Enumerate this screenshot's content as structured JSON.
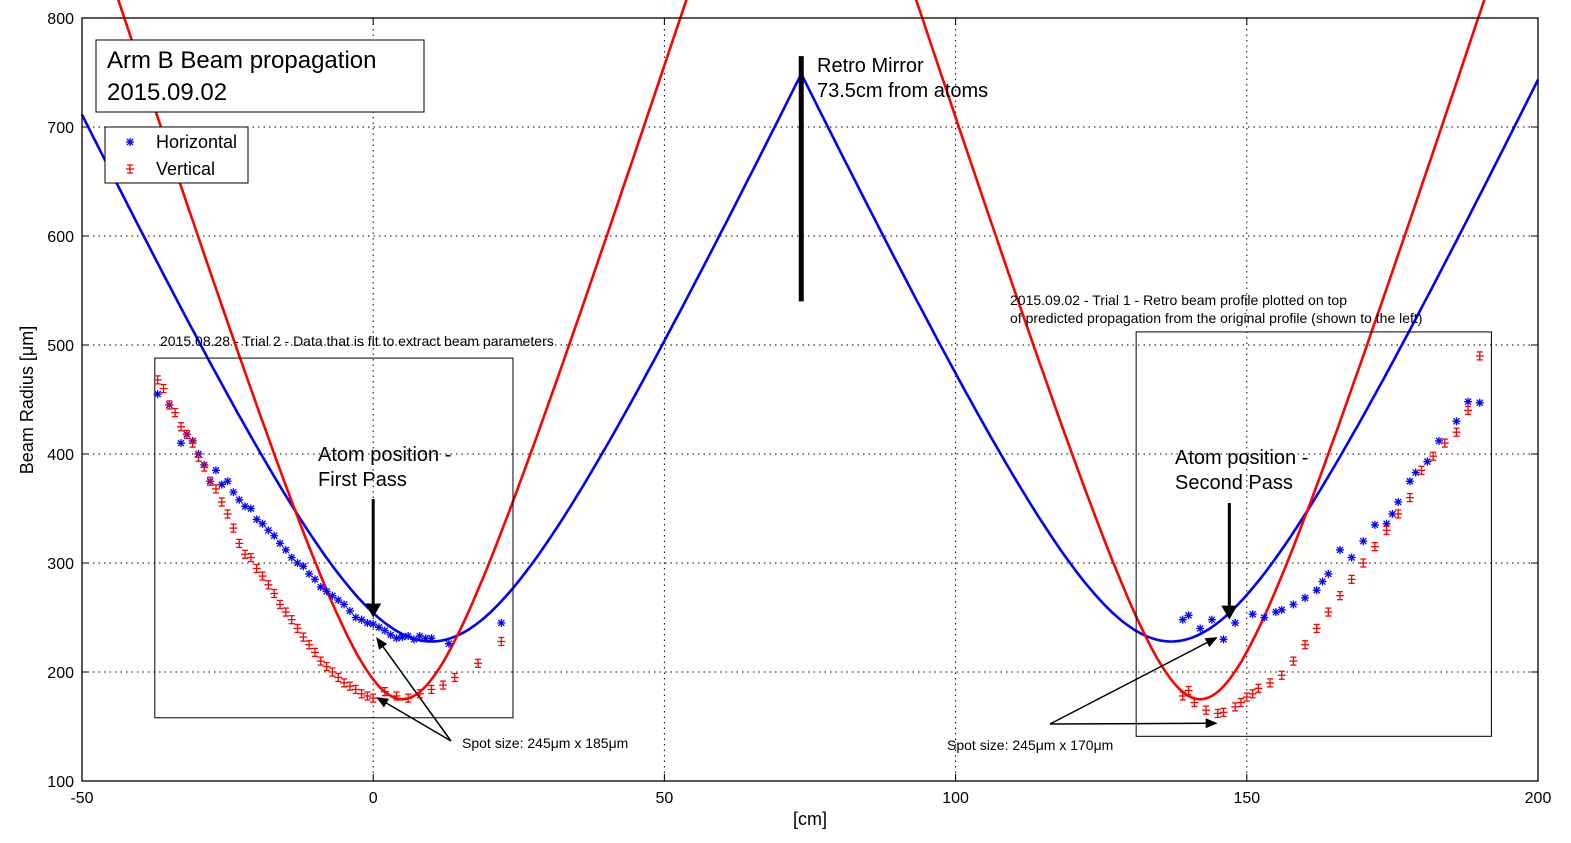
{
  "chart_data": {
    "type": "scatter",
    "title_lines": [
      "Arm B Beam propagation",
      "2015.09.02"
    ],
    "xlabel": "[cm]",
    "ylabel": "Beam Radius [μm]",
    "xlim": [
      -50,
      200
    ],
    "ylim": [
      100,
      800
    ],
    "xticks": [
      -50,
      0,
      50,
      100,
      150,
      200
    ],
    "yticks": [
      100,
      200,
      300,
      400,
      500,
      600,
      700,
      800
    ],
    "grid": true,
    "legend_position": "top-left",
    "legend": [
      {
        "label": "Horizontal",
        "marker": "*",
        "color": "#0000ff"
      },
      {
        "label": "Vertical",
        "marker": "+",
        "color": "#ff0000"
      }
    ],
    "model_curves": [
      {
        "name": "Horizontal",
        "color": "#0000ff",
        "waist_um": 228,
        "waist_cm": 10,
        "rayleigh_cm": 20.3,
        "mirror_cm": 73.5,
        "x_range": [
          -50,
          200
        ]
      },
      {
        "name": "Vertical",
        "color": "#ff0000",
        "waist_um": 175,
        "waist_cm": 5,
        "rayleigh_cm": 10.7,
        "mirror_cm": 73.5,
        "x_range": [
          -50,
          200
        ]
      }
    ],
    "series": [
      {
        "name": "Horizontal",
        "color": "#0000ff",
        "marker": "*",
        "x": [
          -37,
          -35,
          -33,
          -32,
          -31,
          -30,
          -29,
          -28,
          -27,
          -26,
          -25,
          -24,
          -23,
          -22,
          -21,
          -20,
          -19,
          -18,
          -17,
          -16,
          -15,
          -14,
          -13,
          -12,
          -11,
          -10,
          -9,
          -8,
          -7,
          -6,
          -5,
          -4,
          -3,
          -2,
          -1,
          0,
          1,
          2,
          3,
          4,
          5,
          6,
          7,
          8,
          9,
          10,
          13,
          22,
          139,
          140,
          142,
          144,
          146,
          148,
          151,
          153,
          155,
          156,
          158,
          160,
          162,
          163,
          164,
          166,
          168,
          170,
          172,
          174,
          175,
          176,
          178,
          179,
          181,
          183,
          186,
          188,
          190
        ],
        "y": [
          455,
          445,
          410,
          418,
          412,
          400,
          390,
          375,
          385,
          372,
          375,
          365,
          358,
          352,
          350,
          340,
          336,
          330,
          325,
          318,
          312,
          305,
          300,
          297,
          290,
          285,
          278,
          274,
          270,
          266,
          262,
          256,
          250,
          248,
          245,
          244,
          241,
          238,
          234,
          231,
          232,
          233,
          230,
          233,
          231,
          231,
          226,
          245,
          248,
          252,
          240,
          248,
          230,
          245,
          253,
          250,
          255,
          257,
          262,
          268,
          275,
          283,
          290,
          312,
          305,
          320,
          335,
          336,
          345,
          356,
          375,
          383,
          393,
          412,
          430,
          448,
          447
        ]
      },
      {
        "name": "Vertical",
        "color": "#ff0000",
        "marker": "+",
        "x": [
          -37,
          -36,
          -35,
          -34,
          -33,
          -32,
          -31,
          -30,
          -29,
          -28,
          -27,
          -26,
          -25,
          -24,
          -23,
          -22,
          -21,
          -20,
          -19,
          -18,
          -17,
          -16,
          -15,
          -14,
          -13,
          -12,
          -11,
          -10,
          -9,
          -8,
          -7,
          -6,
          -5,
          -4,
          -3,
          -2,
          -1,
          0,
          2,
          4,
          6,
          8,
          10,
          12,
          14,
          18,
          22,
          139,
          140,
          141,
          143,
          145,
          146,
          148,
          149,
          150,
          151,
          152,
          154,
          156,
          158,
          160,
          162,
          164,
          166,
          168,
          170,
          172,
          174,
          176,
          178,
          180,
          182,
          184,
          186,
          188,
          190
        ],
        "y": [
          468,
          460,
          445,
          438,
          425,
          418,
          410,
          397,
          388,
          375,
          368,
          356,
          345,
          332,
          318,
          308,
          305,
          295,
          288,
          280,
          272,
          262,
          255,
          248,
          240,
          232,
          225,
          218,
          210,
          205,
          200,
          195,
          190,
          187,
          184,
          180,
          178,
          176,
          182,
          178,
          176,
          180,
          184,
          188,
          195,
          208,
          228,
          178,
          183,
          172,
          165,
          162,
          163,
          168,
          172,
          177,
          180,
          185,
          190,
          197,
          210,
          225,
          240,
          255,
          270,
          285,
          300,
          315,
          330,
          345,
          360,
          385,
          398,
          410,
          420,
          440,
          490
        ]
      }
    ],
    "annotations": {
      "mirror_label": [
        "Retro Mirror",
        "73.5cm from atoms"
      ],
      "mirror_x": 73.5,
      "mirror_line_y": [
        540,
        765
      ],
      "atom_first_label": [
        "Atom position -",
        "First Pass"
      ],
      "atom_first_x": 0,
      "atom_second_label": [
        "Atom position -",
        "Second Pass"
      ],
      "atom_second_x": 147,
      "trial2_note": "2015.08.28 - Trial 2 - Data that is fit to extract beam parameters",
      "trial1_note": [
        "2015.09.02 - Trial 1 - Retro beam profile plotted on top",
        "of predicted propagation from the original profile (shown to the left)"
      ],
      "spot_first": "Spot size: 245μm x 185μm",
      "spot_second": "Spot size: 245μm x 170μm",
      "box_first": {
        "x": [
          -37.5,
          24
        ],
        "y": [
          158,
          488
        ]
      },
      "box_second": {
        "x": [
          131,
          192
        ],
        "y": [
          141,
          512
        ]
      }
    }
  }
}
